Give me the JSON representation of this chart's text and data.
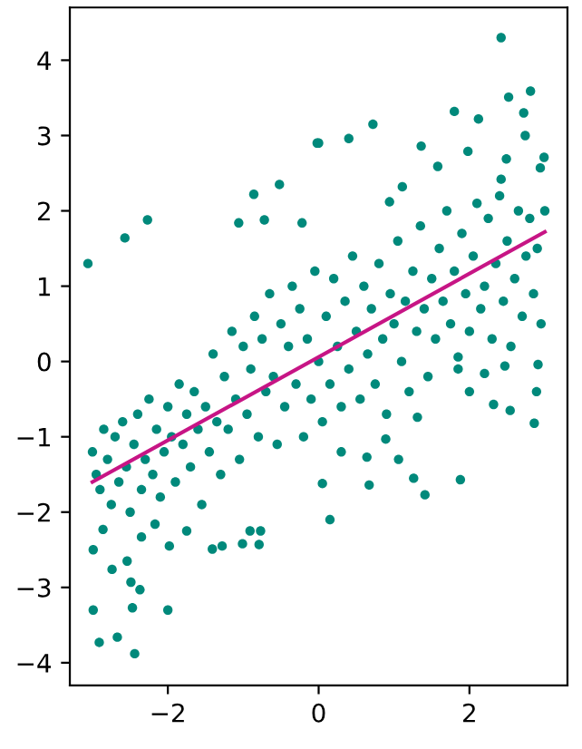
{
  "chart_data": {
    "type": "scatter",
    "xlim": [
      -3.3,
      3.3
    ],
    "ylim": [
      -4.3,
      4.7
    ],
    "xticks": [
      {
        "value": -2,
        "label": "−2"
      },
      0,
      2
    ],
    "yticks": [
      {
        "value": -4,
        "label": "−4"
      },
      {
        "value": -3,
        "label": "−3"
      },
      {
        "value": -2,
        "label": "−2"
      },
      {
        "value": -1,
        "label": "−1"
      },
      0,
      1,
      2,
      3,
      4
    ],
    "grid": false,
    "legend": false,
    "series": [
      {
        "color": "#00897b",
        "marker": "circle",
        "x": [
          -3.06,
          -2.57,
          -2.27,
          -0.86,
          -0.52,
          -0.02,
          -1.06,
          -0.72,
          -0.22,
          2.42,
          2.81,
          2.52,
          1.8,
          2.12,
          0.72,
          0.4,
          0.0,
          1.36,
          2.72,
          1.98,
          2.49,
          2.99,
          2.94,
          1.58,
          1.11,
          0.94,
          2.42,
          2.74,
          -2.99,
          -2.91,
          -2.67,
          -2.44,
          -2.47,
          -2.0,
          -2.49,
          -2.37,
          -2.74,
          -2.54,
          -2.99,
          -2.86,
          -2.35,
          -2.17,
          -1.98,
          -1.75,
          -1.41,
          -1.28,
          -1.01,
          -0.91,
          -0.77,
          -0.79,
          0.15,
          0.67,
          0.05,
          1.26,
          1.41,
          1.88,
          2.86,
          2.54,
          2.32,
          2.0,
          1.06,
          0.89,
          0.64,
          2.89,
          2.91,
          2.47,
          2.2,
          1.85,
          1.31,
          0.3,
          -3.0,
          -2.95,
          -2.9,
          -2.85,
          -2.8,
          -2.75,
          -2.7,
          -2.65,
          -2.6,
          -2.55,
          -2.5,
          -2.45,
          -2.4,
          -2.35,
          -2.3,
          -2.25,
          -2.2,
          -2.15,
          -2.1,
          -2.05,
          -2.0,
          -1.95,
          -1.9,
          -1.85,
          -1.8,
          -1.75,
          -1.7,
          -1.65,
          -1.6,
          -1.55,
          -1.5,
          -1.45,
          -1.4,
          -1.35,
          -1.3,
          -1.25,
          -1.2,
          -1.15,
          -1.1,
          -1.05,
          -1.0,
          -0.95,
          -0.9,
          -0.85,
          -0.8,
          -0.75,
          -0.7,
          -0.65,
          -0.6,
          -0.55,
          -0.5,
          -0.45,
          -0.4,
          -0.35,
          -0.3,
          -0.25,
          -0.2,
          -0.15,
          -0.1,
          -0.05,
          0.0,
          0.05,
          0.1,
          0.15,
          0.2,
          0.25,
          0.3,
          0.35,
          0.4,
          0.45,
          0.5,
          0.55,
          0.6,
          0.65,
          0.7,
          0.75,
          0.8,
          0.85,
          0.9,
          0.95,
          1.0,
          1.05,
          1.1,
          1.15,
          1.2,
          1.25,
          1.3,
          1.35,
          1.4,
          1.45,
          1.5,
          1.55,
          1.6,
          1.65,
          1.7,
          1.75,
          1.8,
          1.85,
          1.9,
          1.95,
          2.0,
          2.05,
          2.1,
          2.15,
          2.2,
          2.25,
          2.3,
          2.35,
          2.4,
          2.45,
          2.5,
          2.55,
          2.6,
          2.65,
          2.7,
          2.75,
          2.8,
          2.85,
          2.9,
          2.95,
          3.0
        ],
        "values": [
          1.3,
          1.64,
          1.88,
          2.22,
          2.35,
          2.9,
          1.84,
          1.88,
          1.84,
          4.3,
          3.59,
          3.51,
          3.32,
          3.22,
          3.15,
          2.96,
          2.9,
          2.86,
          3.3,
          2.79,
          2.69,
          2.71,
          2.57,
          2.59,
          2.32,
          2.12,
          2.42,
          3.0,
          -3.3,
          -3.73,
          -3.66,
          -3.88,
          -3.27,
          -3.3,
          -2.93,
          -3.03,
          -2.76,
          -2.65,
          -2.5,
          -2.23,
          -2.33,
          -2.16,
          -2.45,
          -2.25,
          -2.49,
          -2.45,
          -2.42,
          -2.25,
          -2.25,
          -2.43,
          -2.1,
          -1.64,
          -1.62,
          -1.55,
          -1.77,
          -1.57,
          -0.82,
          -0.65,
          -0.57,
          -0.4,
          -1.3,
          -1.03,
          -1.27,
          -0.4,
          -0.04,
          -0.06,
          -0.16,
          0.06,
          -0.74,
          -1.2,
          -1.2,
          -1.5,
          -1.7,
          -0.9,
          -1.3,
          -1.9,
          -1.0,
          -1.6,
          -0.8,
          -1.4,
          -2.0,
          -1.1,
          -0.7,
          -1.7,
          -1.3,
          -0.5,
          -1.5,
          -0.9,
          -1.8,
          -1.2,
          -0.6,
          -1.0,
          -1.6,
          -0.3,
          -1.1,
          -0.7,
          -1.4,
          -0.4,
          -0.9,
          -1.9,
          -0.6,
          -1.2,
          0.1,
          -0.8,
          -1.5,
          -0.2,
          -0.9,
          0.4,
          -0.5,
          -1.3,
          0.2,
          -0.7,
          -0.1,
          0.6,
          -1.0,
          0.3,
          -0.4,
          0.9,
          -0.2,
          -1.1,
          0.5,
          -0.6,
          0.2,
          1.0,
          -0.3,
          0.7,
          -1.0,
          0.3,
          -0.5,
          1.2,
          0.0,
          -0.8,
          0.6,
          -0.3,
          1.1,
          0.2,
          -0.6,
          0.8,
          -0.1,
          1.4,
          0.4,
          -0.5,
          1.0,
          0.1,
          0.7,
          -0.3,
          1.3,
          0.3,
          -0.7,
          0.9,
          0.5,
          1.6,
          0.0,
          0.8,
          -0.4,
          1.2,
          0.4,
          1.8,
          0.7,
          -0.2,
          1.1,
          0.3,
          1.5,
          0.8,
          2.0,
          0.5,
          1.2,
          -0.1,
          1.7,
          0.9,
          0.4,
          1.4,
          2.1,
          0.7,
          1.0,
          1.9,
          0.3,
          1.3,
          2.2,
          0.8,
          1.6,
          0.2,
          1.1,
          2.0,
          0.6,
          1.4,
          1.9,
          0.9,
          1.5,
          0.5,
          2.0
        ]
      },
      {
        "type": "line",
        "marker": "none",
        "color": "#c71585",
        "x": [
          -3,
          3
        ],
        "values": [
          -1.6,
          1.72
        ]
      }
    ]
  }
}
